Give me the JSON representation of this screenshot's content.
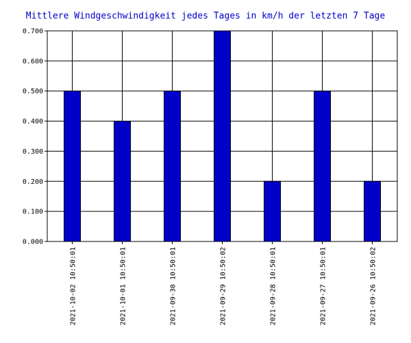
{
  "chart_data": {
    "type": "bar",
    "title": "Mittlere Windgeschwindigkeit jedes Tages in km/h der letzten 7 Tage",
    "categories": [
      "2021-10-02 10:50:01",
      "2021-10-01 10:50:01",
      "2021-09-30 10:50:01",
      "2021-09-29 10:50:02",
      "2021-09-28 10:50:01",
      "2021-09-27 10:50:01",
      "2021-09-26 10:50:02"
    ],
    "values": [
      0.5,
      0.4,
      0.5,
      0.7,
      0.2,
      0.5,
      0.2
    ],
    "ylim": [
      0,
      0.7
    ],
    "yticks": [
      "0.000",
      "0.100",
      "0.200",
      "0.300",
      "0.400",
      "0.500",
      "0.600",
      "0.700"
    ],
    "xlabel": "",
    "ylabel": "",
    "grid": true,
    "colors": {
      "bar": "#0000c8",
      "title": "#0000c8",
      "grid": "#000000"
    }
  }
}
